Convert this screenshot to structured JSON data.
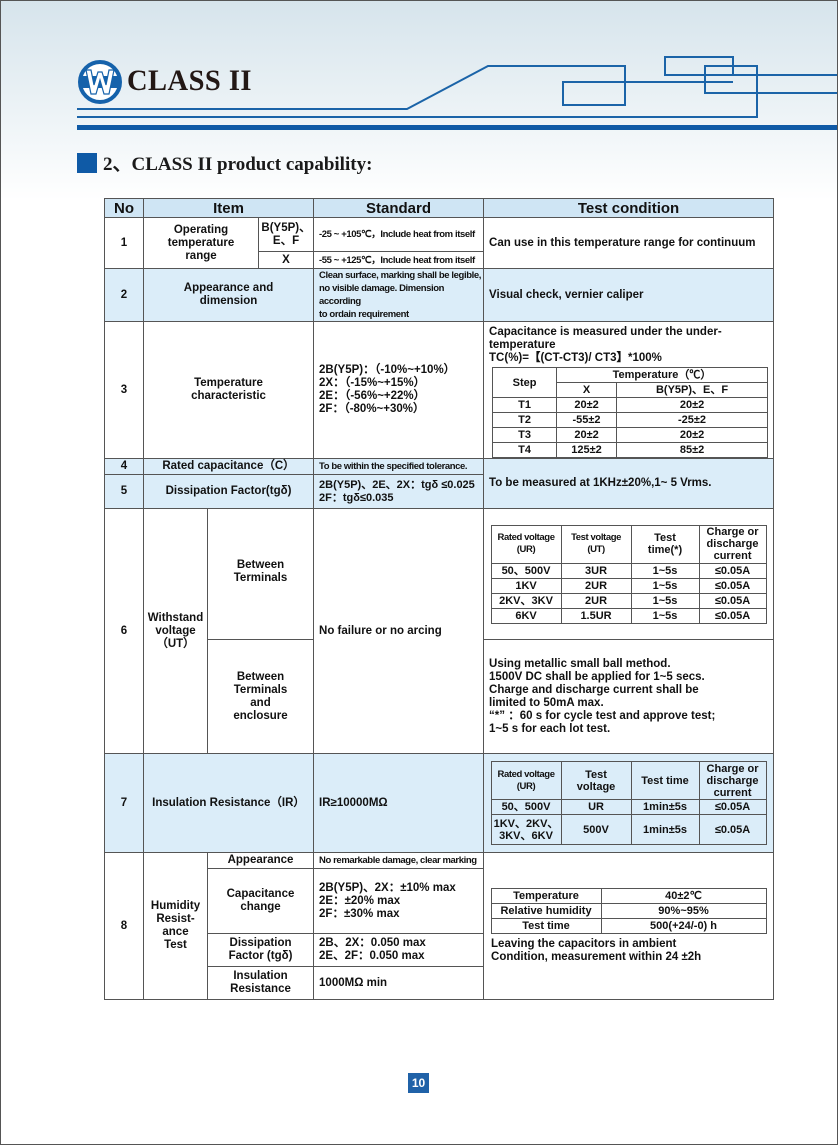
{
  "header": {
    "brand": "CLASS II",
    "logo": "w-circle-logo"
  },
  "section_title": "2、CLASS II product capability:",
  "colors": {
    "accent": "#0f5aa6",
    "row_highlight": "#dbedf9",
    "header_fill": "#cfe5f4"
  },
  "table": {
    "headers": {
      "no": "No",
      "item": "Item",
      "standard": "Standard",
      "test": "Test condition"
    },
    "r1": {
      "no": "1",
      "item": "Operating\ntemperature\nrange",
      "sub_a": "B(Y5P)、\nE、F",
      "std_a": "-25 ~ +105℃，Include heat from itself",
      "sub_b": "X",
      "std_b": "-55 ~ +125℃，Include heat from itself",
      "test": "Can use in this temperature range for continuum"
    },
    "r2": {
      "no": "2",
      "item": "Appearance and\ndimension",
      "std": "Clean surface, marking shall be legible,\n no visible damage. Dimension according\nto ordain requirement",
      "test": "Visual check, vernier caliper"
    },
    "r3": {
      "no": "3",
      "item": "Temperature\ncharacteristic",
      "std": "2B(Y5P)：（-10%~+10%）\n2X：（-15%~+15%）\n2E：（-56%~+22%）\n2F：（-80%~+30%）",
      "test_line1": "Capacitance is measured under the under-temperature",
      "test_line2": "TC(%)=【(CT-CT3)/ CT3】*100%",
      "sub": {
        "step": "Step",
        "temp": "Temperature（℃）",
        "x": "X",
        "b": "B(Y5P)、E、F",
        "rows": [
          [
            "T1",
            "20±2",
            "20±2"
          ],
          [
            "T2",
            "-55±2",
            "-25±2"
          ],
          [
            "T3",
            "20±2",
            "20±2"
          ],
          [
            "T4",
            "125±2",
            "85±2"
          ]
        ]
      }
    },
    "r4": {
      "no": "4",
      "item": "Rated capacitance（C）",
      "std": "To be within the specified tolerance.",
      "test": "To be measured at 1KHz±20%,1~ 5 Vrms."
    },
    "r5": {
      "no": "5",
      "item": "Dissipation Factor(tgδ)",
      "std": "2B(Y5P)、2E、2X：tgδ ≤0.025\n2F：tgδ≤0.035"
    },
    "r6": {
      "no": "6",
      "item": "Withstand\nvoltage\n（UT）",
      "sub_a": "Between\nTerminals",
      "sub_b": "Between\nTerminals\nand\nenclosure",
      "std": "No failure or no arcing",
      "sub": {
        "h": [
          "Rated voltage\n(UR)",
          "Test voltage\n(UT)",
          "Test\ntime(*)",
          "Charge or\ndischarge\ncurrent"
        ],
        "rows": [
          [
            "50、500V",
            "3UR",
            "1~5s",
            "≤0.05A"
          ],
          [
            "1KV",
            "2UR",
            "1~5s",
            "≤0.05A"
          ],
          [
            "2KV、3KV",
            "2UR",
            "1~5s",
            "≤0.05A"
          ],
          [
            "6KV",
            "1.5UR",
            "1~5s",
            "≤0.05A"
          ]
        ]
      },
      "test_b": "Using metallic small ball method.\n1500V DC shall be applied for 1~5 secs.\nCharge and discharge current shall be\nlimited to 50mA max.\n “*” ：60 s for cycle test and approve test;\n1~5 s for each lot test."
    },
    "r7": {
      "no": "7",
      "item": "Insulation Resistance（IR）",
      "std": "IR≥10000MΩ",
      "sub": {
        "h": [
          "Rated voltage\n(UR)",
          "Test\nvoltage",
          "Test time",
          "Charge or\ndischarge\ncurrent"
        ],
        "rows": [
          [
            "50、500V",
            "UR",
            "1min±5s",
            "≤0.05A"
          ],
          [
            "1KV、2KV、\n3KV、6KV",
            "500V",
            "1min±5s",
            "≤0.05A"
          ]
        ]
      }
    },
    "r8": {
      "no": "8",
      "item": "Humidity\nResist-\nance\nTest",
      "subs": [
        {
          "name": "Appearance",
          "std": "No remarkable damage, clear marking"
        },
        {
          "name": "Capacitance\nchange",
          "std": "2B(Y5P)、2X：±10% max\n2E：±20% max\n2F：±30% max"
        },
        {
          "name": "Dissipation\nFactor (tgδ)",
          "std": "2B、2X：0.050 max\n2E、2F：0.050 max"
        },
        {
          "name": "Insulation\nResistance",
          "std": "1000MΩ min"
        }
      ],
      "sub": {
        "rows": [
          [
            "Temperature",
            "40±2℃"
          ],
          [
            "Relative humidity",
            "90%~95%"
          ],
          [
            "Test time",
            "500(+24/-0) h"
          ]
        ]
      },
      "test_note": "Leaving the capacitors in ambient\nCondition, measurement within 24 ±2h"
    }
  },
  "page_number": "10"
}
